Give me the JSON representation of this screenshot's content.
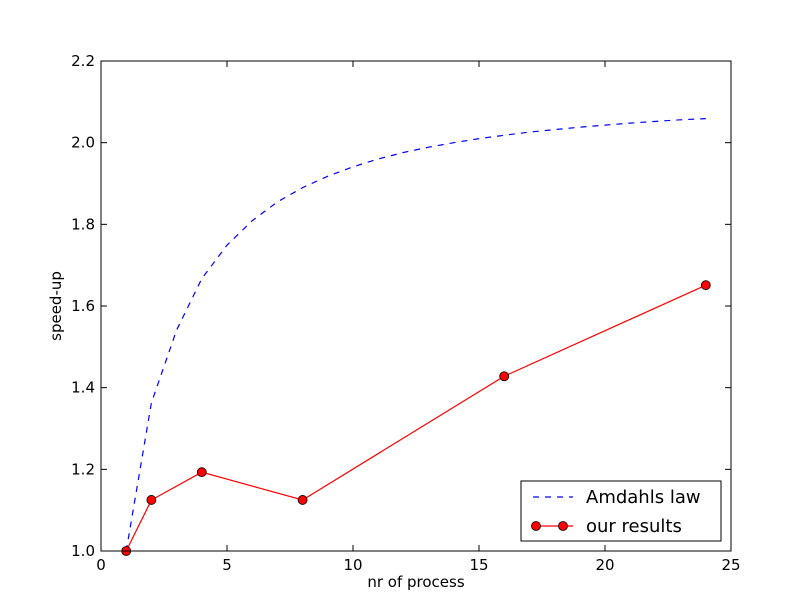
{
  "chart_data": {
    "type": "line",
    "title": "",
    "xlabel": "nr of process",
    "ylabel": "speed-up",
    "xlim": [
      0,
      25
    ],
    "ylim": [
      1.0,
      2.2
    ],
    "xticks": [
      0,
      5,
      10,
      15,
      20,
      25
    ],
    "xtick_labels": [
      "0",
      "5",
      "10",
      "15",
      "20",
      "25"
    ],
    "yticks": [
      1.0,
      1.2,
      1.4,
      1.6,
      1.8,
      2.0,
      2.2
    ],
    "ytick_labels": [
      "1.0",
      "1.2",
      "1.4",
      "1.6",
      "1.8",
      "2.0",
      "2.2"
    ],
    "grid": false,
    "legend_position": "lower-right",
    "series": [
      {
        "name": "Amdahls law",
        "style": "dashed",
        "color": "#0000ff",
        "x": [
          1,
          2,
          3,
          4,
          5,
          6,
          7,
          8,
          9,
          10,
          11,
          12,
          13,
          14,
          15,
          16,
          17,
          18,
          19,
          20,
          21,
          22,
          23,
          24
        ],
        "y": [
          1.0,
          1.363,
          1.541,
          1.667,
          1.749,
          1.809,
          1.855,
          1.89,
          1.918,
          1.941,
          1.96,
          1.976,
          1.989,
          2.0,
          2.01,
          2.018,
          2.026,
          2.032,
          2.038,
          2.043,
          2.048,
          2.052,
          2.056,
          2.059
        ]
      },
      {
        "name": "our results",
        "style": "solid-markers",
        "color": "#ff0000",
        "x": [
          1,
          2,
          4,
          8,
          16,
          24
        ],
        "y": [
          1.0,
          1.125,
          1.193,
          1.125,
          1.428,
          1.651
        ]
      }
    ]
  }
}
